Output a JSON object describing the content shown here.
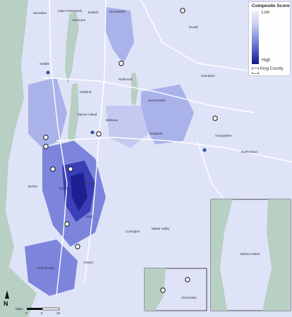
{
  "legend": {
    "title": "Composite Score",
    "low_label": "Low",
    "high_label": "High",
    "region_label": "King County"
  },
  "places": [
    {
      "key": "shoreline",
      "label": "Shoreline"
    },
    {
      "key": "lake_forest_park",
      "label": "Lake Forest Park"
    },
    {
      "key": "bothell",
      "label": "Bothell"
    },
    {
      "key": "kenmore",
      "label": "Kenmore"
    },
    {
      "key": "woodinville",
      "label": "Woodinville"
    },
    {
      "key": "duvall",
      "label": "Duvall"
    },
    {
      "key": "seattle",
      "label": "Seattle"
    },
    {
      "key": "redmond",
      "label": "Redmond"
    },
    {
      "key": "kirkland",
      "label": "Kirkland"
    },
    {
      "key": "sammamish",
      "label": "Sammamish"
    },
    {
      "key": "carnation",
      "label": "Carnation"
    },
    {
      "key": "mercer_island",
      "label": "Mercer Island"
    },
    {
      "key": "bellevue",
      "label": "Bellevue"
    },
    {
      "key": "issaquah",
      "label": "Issaquah"
    },
    {
      "key": "snoqualmie",
      "label": "Snoqualmie"
    },
    {
      "key": "north_bend",
      "label": "North Bend"
    },
    {
      "key": "burien",
      "label": "Burien"
    },
    {
      "key": "tukwila",
      "label": "Tukwila"
    },
    {
      "key": "renton",
      "label": "Renton"
    },
    {
      "key": "kent",
      "label": "Kent"
    },
    {
      "key": "covington",
      "label": "Covington"
    },
    {
      "key": "maple_valley",
      "label": "Maple Valley"
    },
    {
      "key": "federal_way",
      "label": "Federal Way"
    },
    {
      "key": "auburn",
      "label": "Auburn"
    },
    {
      "key": "enumclaw",
      "label": "Enumclaw"
    },
    {
      "key": "vashon_island",
      "label": "Vashon Island"
    }
  ],
  "scale_bar": {
    "unit_label": "Miles",
    "ticks": [
      "0",
      "5",
      "10"
    ]
  },
  "north_label": "N",
  "colors": {
    "water": "#b8cfc4",
    "lowest": "#eef0fb",
    "low": "#d7dbf5",
    "mid": "#aab2ea",
    "high": "#5a61cf",
    "highest": "#1c1f91",
    "roads": "#ffffff"
  },
  "icons": [
    "hospital-marker-icon",
    "interstate-shield-icon",
    "north-arrow-icon"
  ]
}
